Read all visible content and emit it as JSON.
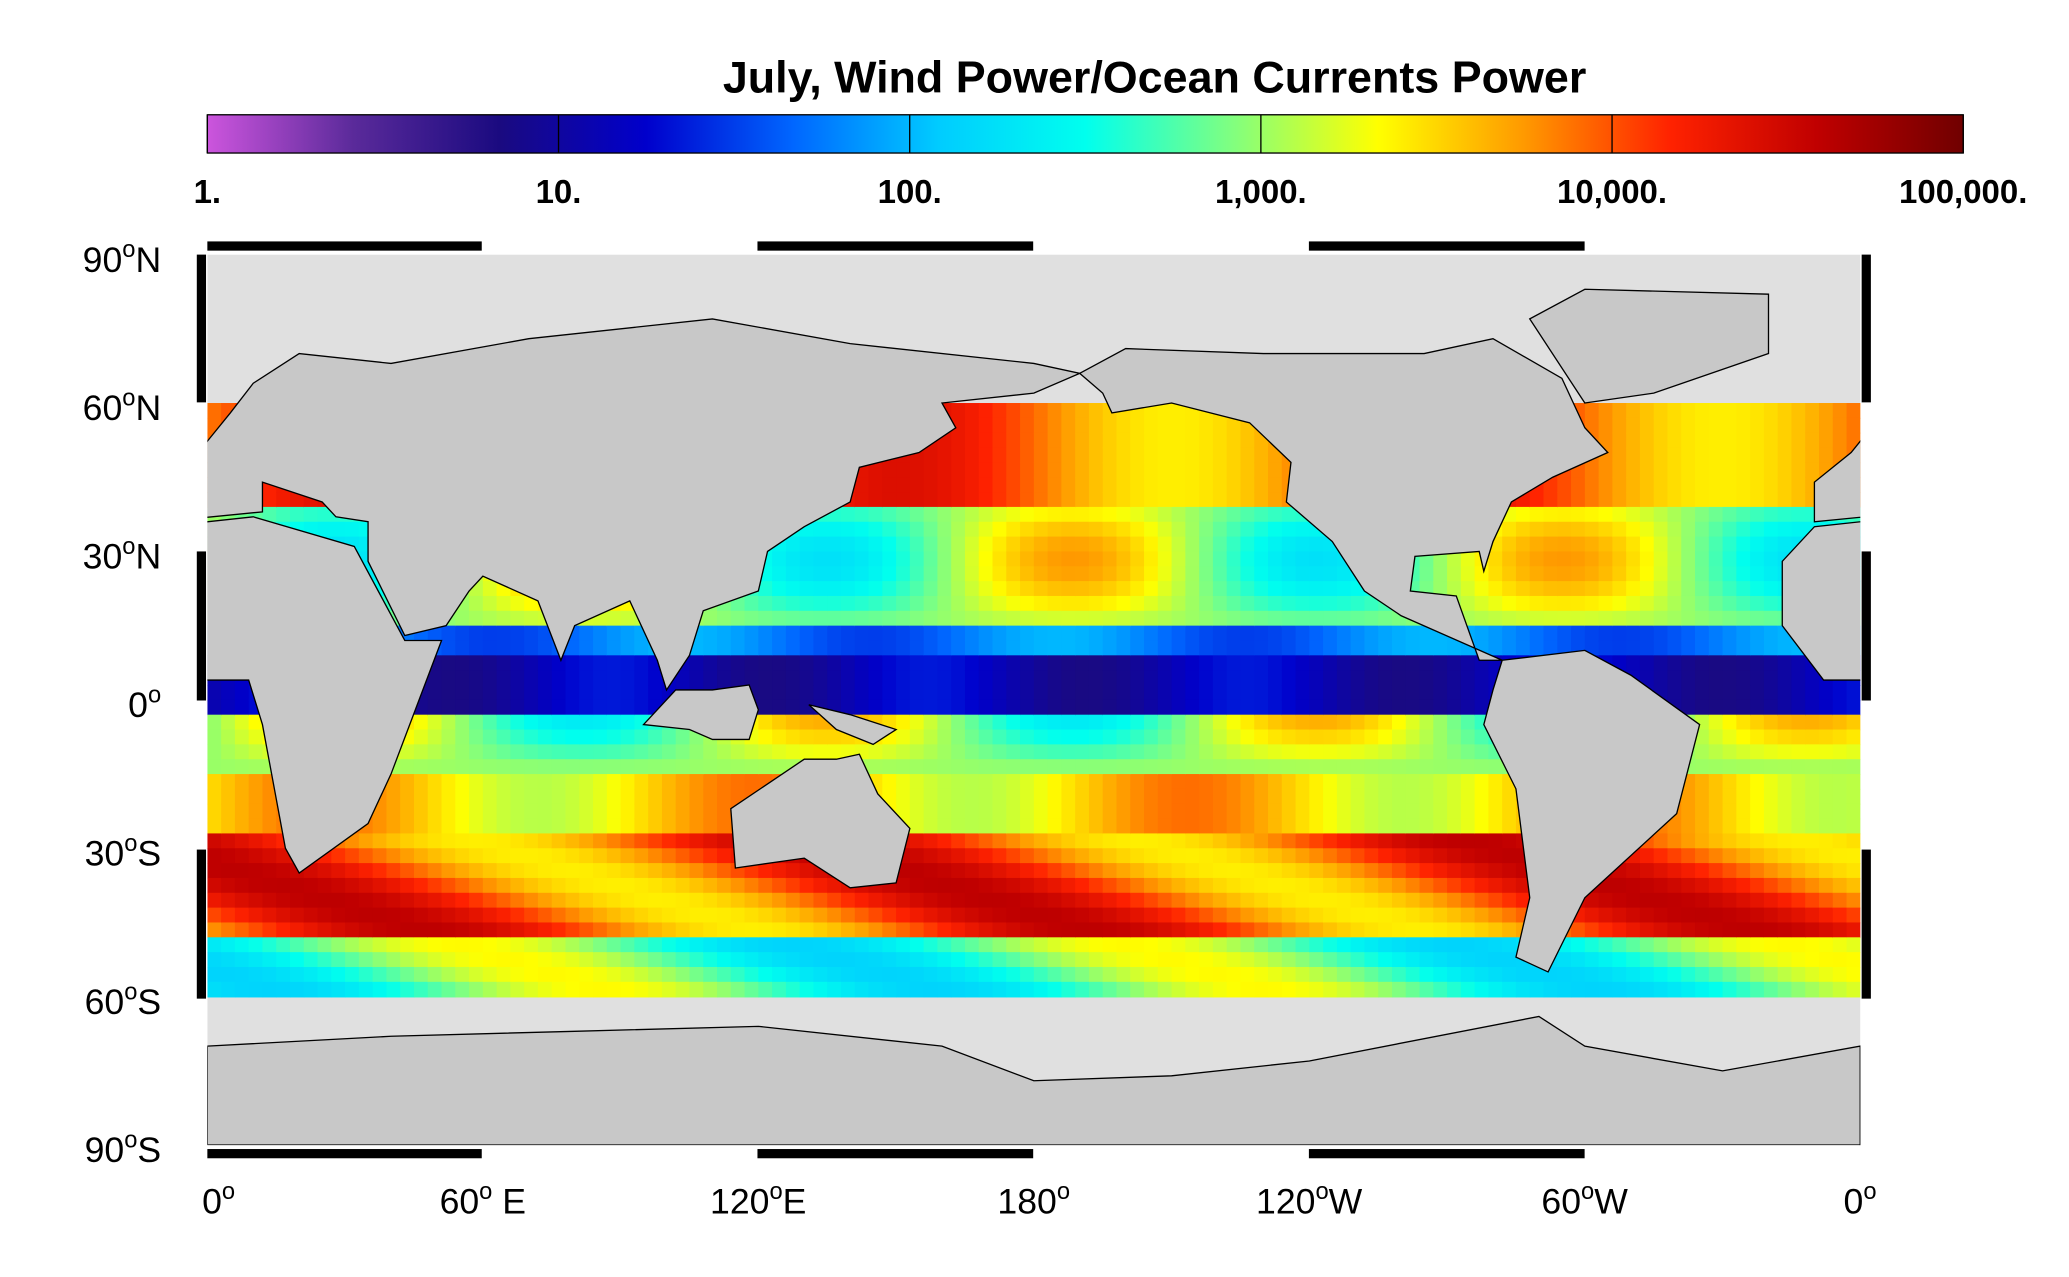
{
  "title": "July, Wind Power/Ocean Currents Power",
  "colorbar": {
    "scale": "log",
    "range": [
      1,
      100000
    ],
    "ticks": [
      {
        "value": 1,
        "label": "1."
      },
      {
        "value": 10,
        "label": "10."
      },
      {
        "value": 100,
        "label": "100."
      },
      {
        "value": 1000,
        "label": "1,000."
      },
      {
        "value": 10000,
        "label": "10,000."
      },
      {
        "value": 100000,
        "label": "100,000."
      }
    ],
    "colors": [
      "#cc55dd",
      "#5a2a9a",
      "#1a0a80",
      "#0000cc",
      "#0066ff",
      "#00ccff",
      "#00ffee",
      "#80ff80",
      "#ffff00",
      "#ff9900",
      "#ff2200",
      "#c00000",
      "#700000"
    ]
  },
  "latitude_labels": [
    {
      "number": "90",
      "degree": "o",
      "suffix": "N"
    },
    {
      "number": "60",
      "degree": "o",
      "suffix": "N"
    },
    {
      "number": "30",
      "degree": "o",
      "suffix": "N"
    },
    {
      "number": "0",
      "degree": "o",
      "suffix": ""
    },
    {
      "number": "30",
      "degree": "o",
      "suffix": "S"
    },
    {
      "number": "60",
      "degree": "o",
      "suffix": "S"
    },
    {
      "number": "90",
      "degree": "o",
      "suffix": "S"
    }
  ],
  "longitude_labels": [
    {
      "number": "0",
      "degree": "o",
      "suffix": ""
    },
    {
      "number": "60",
      "degree": "o",
      "suffix": " E"
    },
    {
      "number": "120",
      "degree": "o",
      "suffix": "E"
    },
    {
      "number": "180",
      "degree": "o",
      "suffix": ""
    },
    {
      "number": "120",
      "degree": "o",
      "suffix": "W"
    },
    {
      "number": "60",
      "degree": "o",
      "suffix": "W"
    },
    {
      "number": "0",
      "degree": "o",
      "suffix": ""
    }
  ]
}
